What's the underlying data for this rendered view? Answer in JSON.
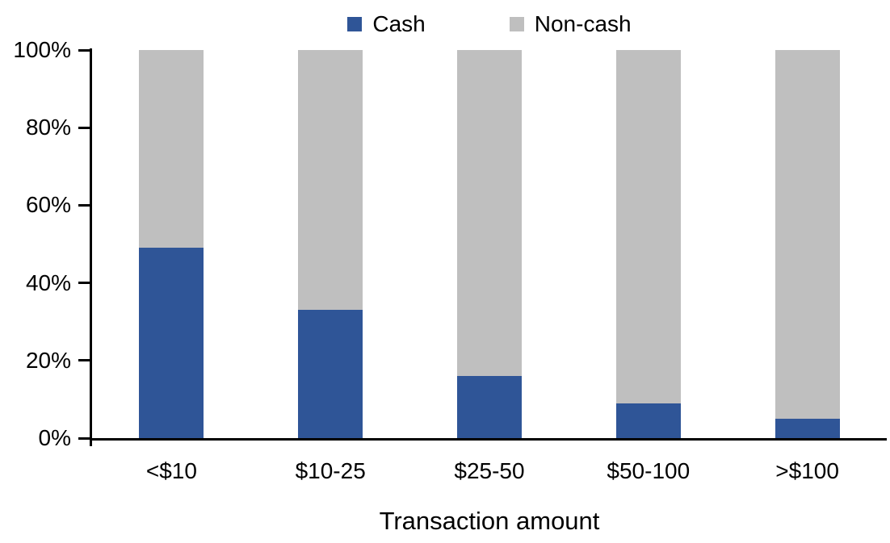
{
  "chart_data": {
    "type": "bar",
    "variant": "stacked-100",
    "title": "",
    "xlabel": "Transaction amount",
    "ylabel": "",
    "categories": [
      "<$10",
      "$10-25",
      "$25-50",
      "$50-100",
      ">$100"
    ],
    "series": [
      {
        "name": "Cash",
        "color": "#2F5597",
        "values": [
          49,
          33,
          16,
          9,
          5
        ]
      },
      {
        "name": "Non-cash",
        "color": "#BFBFBF",
        "values": [
          51,
          67,
          84,
          91,
          95
        ]
      }
    ],
    "ylim": [
      0,
      100
    ],
    "yticks": [
      "0%",
      "20%",
      "40%",
      "60%",
      "80%",
      "100%"
    ],
    "ytick_values": [
      0,
      20,
      40,
      60,
      80,
      100
    ],
    "legend_position": "top",
    "grid": false
  },
  "colors": {
    "cash": "#2F5597",
    "noncash": "#BFBFBF",
    "axis": "#000000",
    "text": "#000000",
    "background": "#FFFFFF"
  }
}
